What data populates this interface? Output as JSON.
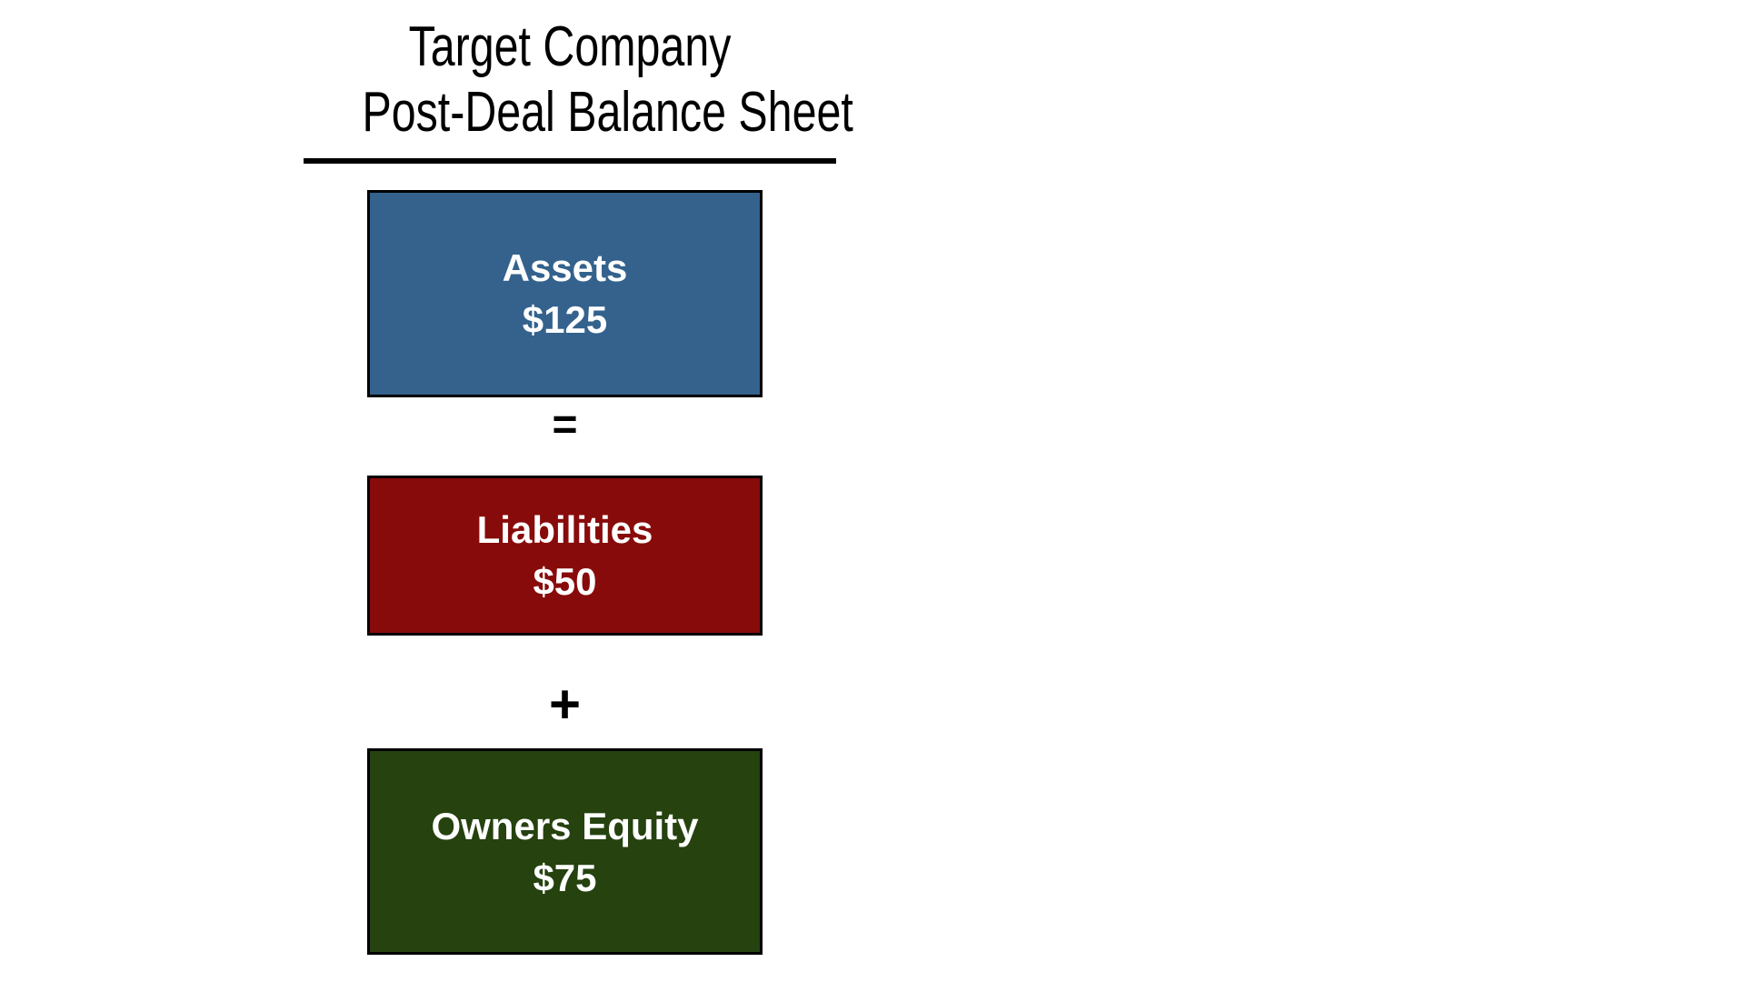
{
  "slide": {
    "title": {
      "line1": "Target Company",
      "line2": "Post-Deal Balance Sheet"
    },
    "operators": {
      "equals": "=",
      "plus": "+"
    },
    "boxes": {
      "assets": {
        "label": "Assets",
        "value": "$125",
        "fill": "#34628D"
      },
      "liabilities": {
        "label": "Liabilities",
        "value": "$50",
        "fill": "#880B0B"
      },
      "owners_equity": {
        "label": "Owners Equity",
        "value": "$75",
        "fill": "#25420F"
      }
    },
    "colors": {
      "background": "#FFFFFF",
      "box_border": "#000000",
      "box_text": "#FFFFFF",
      "title_text": "#000000",
      "underline": "#000000"
    }
  }
}
